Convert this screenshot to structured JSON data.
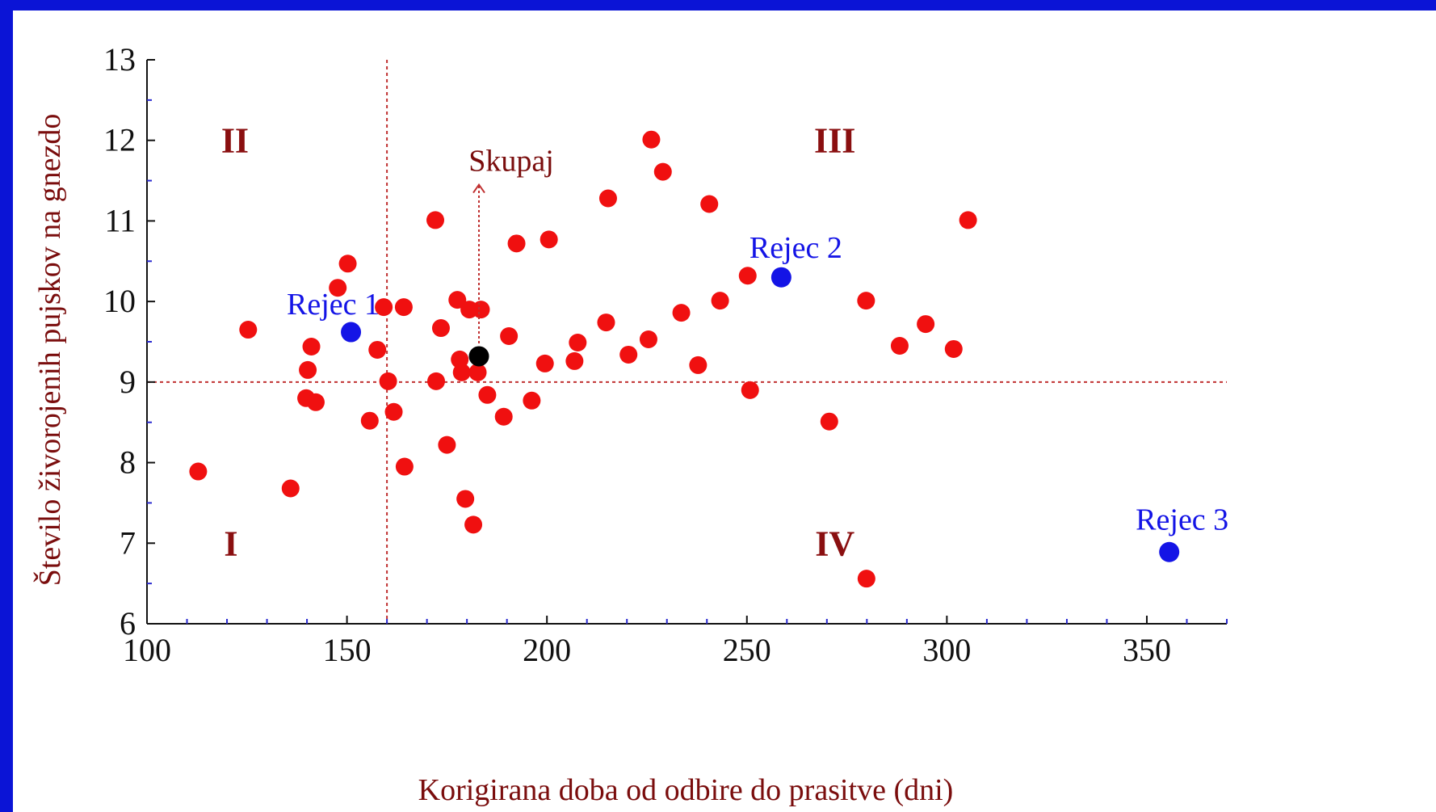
{
  "chart_data": {
    "type": "scatter",
    "xlabel": "Korigirana doba od odbire do prasitve (dni)",
    "ylabel": "Število  živorojenih pujskov na gnezdo",
    "xlim": [
      100,
      370
    ],
    "ylim": [
      6,
      13
    ],
    "xticks": [
      100,
      150,
      200,
      250,
      300,
      350
    ],
    "yticks": [
      6,
      7,
      8,
      9,
      10,
      11,
      12,
      13
    ],
    "reference_lines": {
      "x": 160,
      "y": 9
    },
    "quadrant_labels": [
      {
        "text": "II",
        "x": 122,
        "y": 12
      },
      {
        "text": "III",
        "x": 272,
        "y": 12
      },
      {
        "text": "I",
        "x": 121,
        "y": 7
      },
      {
        "text": "IV",
        "x": 272,
        "y": 7
      }
    ],
    "colors": {
      "points": "#f01010",
      "highlight": "#1414e6",
      "mean": "#000000",
      "text": "#7a0d0d",
      "reference_line": "#c03030"
    },
    "series": [
      {
        "color": "#f01010",
        "points": [
          [
            112.8,
            7.89
          ],
          [
            125.3,
            9.65
          ],
          [
            135.9,
            7.68
          ],
          [
            139.8,
            8.8
          ],
          [
            140.2,
            9.15
          ],
          [
            141.1,
            9.44
          ],
          [
            142.2,
            8.75
          ],
          [
            147.7,
            10.17
          ],
          [
            150.2,
            10.47
          ],
          [
            155.7,
            8.52
          ],
          [
            157.6,
            9.4
          ],
          [
            159.2,
            9.93
          ],
          [
            160.3,
            9.01
          ],
          [
            161.7,
            8.63
          ],
          [
            164.2,
            9.93
          ],
          [
            164.4,
            7.95
          ],
          [
            172.1,
            11.01
          ],
          [
            172.3,
            9.01
          ],
          [
            173.5,
            9.67
          ],
          [
            175.0,
            8.22
          ],
          [
            177.6,
            10.02
          ],
          [
            178.2,
            9.28
          ],
          [
            178.7,
            9.12
          ],
          [
            179.6,
            7.55
          ],
          [
            180.6,
            9.9
          ],
          [
            181.6,
            7.23
          ],
          [
            182.7,
            9.12
          ],
          [
            183.5,
            9.9
          ],
          [
            185.1,
            8.84
          ],
          [
            189.2,
            8.57
          ],
          [
            190.5,
            9.57
          ],
          [
            192.4,
            10.72
          ],
          [
            196.2,
            8.77
          ],
          [
            199.5,
            9.23
          ],
          [
            200.5,
            10.77
          ],
          [
            206.9,
            9.26
          ],
          [
            207.7,
            9.49
          ],
          [
            214.8,
            9.74
          ],
          [
            215.3,
            11.28
          ],
          [
            220.4,
            9.34
          ],
          [
            225.4,
            9.53
          ],
          [
            226.1,
            12.01
          ],
          [
            229.0,
            11.61
          ],
          [
            233.6,
            9.86
          ],
          [
            237.8,
            9.21
          ],
          [
            240.6,
            11.21
          ],
          [
            243.3,
            10.01
          ],
          [
            250.2,
            10.32
          ],
          [
            250.8,
            8.9
          ],
          [
            270.6,
            8.51
          ],
          [
            279.8,
            10.01
          ],
          [
            279.9,
            6.56
          ],
          [
            288.2,
            9.45
          ],
          [
            294.7,
            9.72
          ],
          [
            301.7,
            9.41
          ],
          [
            305.3,
            11.01
          ]
        ]
      }
    ],
    "annotated_points": [
      {
        "label": "Rejec 1",
        "x": 151.0,
        "y": 9.62,
        "color": "#1414e6"
      },
      {
        "label": "Rejec 2",
        "x": 258.6,
        "y": 10.3,
        "color": "#1414e6"
      },
      {
        "label": "Rejec 3",
        "x": 355.6,
        "y": 6.89,
        "color": "#1414e6"
      },
      {
        "label": "Skupaj",
        "x": 183.0,
        "y": 9.32,
        "color": "#000000"
      }
    ]
  }
}
